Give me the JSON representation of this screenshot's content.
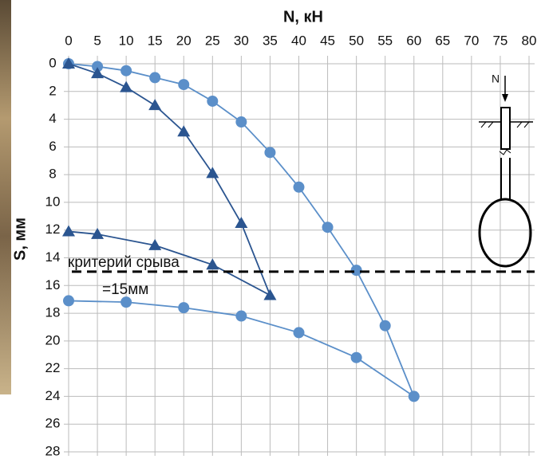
{
  "chart_data": {
    "type": "line",
    "xlabel": "N, кН",
    "ylabel": "S, мм",
    "xlim": [
      0,
      80
    ],
    "xticks": [
      0,
      5,
      10,
      15,
      20,
      25,
      30,
      35,
      40,
      45,
      50,
      55,
      60,
      65,
      70,
      75,
      80
    ],
    "ylim": [
      0,
      28
    ],
    "yticks": [
      0,
      2,
      4,
      6,
      8,
      10,
      12,
      14,
      16,
      18,
      20,
      22,
      24,
      26,
      28
    ],
    "y_inverted": true,
    "grid": true,
    "series": [
      {
        "color": "#5b8fc9",
        "marker": "circle",
        "x": [
          0,
          5,
          10,
          15,
          20,
          25,
          30,
          35,
          40,
          45,
          50,
          55,
          60,
          50,
          40,
          30,
          20,
          10,
          0
        ],
        "values": [
          0,
          0.2,
          0.5,
          1,
          1.5,
          2.7,
          4.2,
          6.4,
          8.9,
          11.8,
          14.9,
          18.9,
          24,
          21.2,
          19.4,
          18.2,
          17.6,
          17.2,
          17.1
        ]
      },
      {
        "color": "#2b5590",
        "marker": "triangle",
        "x": [
          0,
          5,
          10,
          15,
          20,
          25,
          30,
          35,
          25,
          15,
          5,
          0
        ],
        "values": [
          0,
          0.7,
          1.7,
          3,
          4.9,
          7.9,
          11.5,
          16.7,
          14.5,
          13.1,
          12.3,
          12.1
        ]
      }
    ],
    "reference_line": {
      "value": 15,
      "label": "критерий срыва",
      "sublabel": "=15мм"
    },
    "diagram_label": "N"
  }
}
